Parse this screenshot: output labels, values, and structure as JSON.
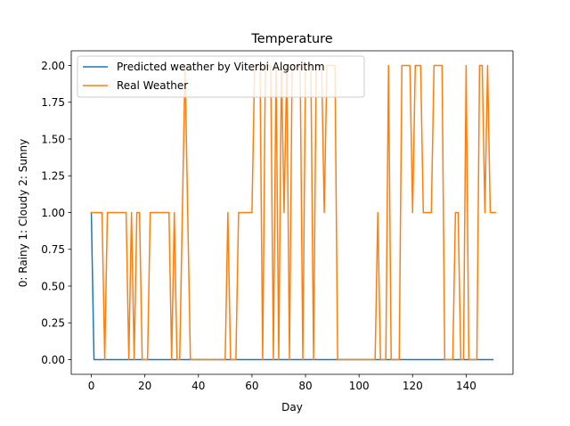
{
  "chart_data": {
    "type": "line",
    "title": "Temperature",
    "xlabel": "Day",
    "ylabel": "0: Rainy 1: Cloudy 2: Sunny",
    "xlim": [
      -7.5,
      157.5
    ],
    "ylim": [
      -0.1,
      2.1
    ],
    "xticks": [
      0,
      20,
      40,
      60,
      80,
      100,
      120,
      140
    ],
    "xtick_labels": [
      "0",
      "20",
      "40",
      "60",
      "80",
      "100",
      "120",
      "140"
    ],
    "yticks": [
      0,
      0.25,
      0.5,
      0.75,
      1.0,
      1.25,
      1.5,
      1.75,
      2.0
    ],
    "ytick_labels": [
      "0.00",
      "0.25",
      "0.50",
      "0.75",
      "1.00",
      "1.25",
      "1.50",
      "1.75",
      "2.00"
    ],
    "grid": false,
    "legend_position": "upper-left",
    "series": [
      {
        "name": "Predicted weather by Viterbi Algorithm",
        "color": "#1f77b4",
        "values": [
          1,
          0,
          0,
          0,
          0,
          0,
          0,
          0,
          0,
          0,
          0,
          0,
          0,
          0,
          0,
          0,
          0,
          0,
          0,
          0,
          0,
          0,
          0,
          0,
          0,
          0,
          0,
          0,
          0,
          0,
          0,
          0,
          0,
          0,
          0,
          0,
          0,
          0,
          0,
          0,
          0,
          0,
          0,
          0,
          0,
          0,
          0,
          0,
          0,
          0,
          0,
          0,
          0,
          0,
          0,
          0,
          0,
          0,
          0,
          0,
          0,
          0,
          0,
          0,
          0,
          0,
          0,
          0,
          0,
          0,
          0,
          0,
          0,
          0,
          0,
          0,
          0,
          0,
          0,
          0,
          0,
          0,
          0,
          0,
          0,
          0,
          0,
          0,
          0,
          0,
          0,
          0,
          0,
          0,
          0,
          0,
          0,
          0,
          0,
          0,
          0,
          0,
          0,
          0,
          0,
          0,
          0,
          0,
          0,
          0,
          0,
          0,
          0,
          0,
          0,
          0,
          0,
          0,
          0,
          0,
          0,
          0,
          0,
          0,
          0,
          0,
          0,
          0,
          0,
          0,
          0,
          0,
          0,
          0,
          0,
          0,
          0,
          0,
          0,
          0,
          0,
          0,
          0,
          0,
          0,
          0,
          0,
          0,
          0,
          0,
          0
        ]
      },
      {
        "name": "Real Weather",
        "color": "#ff7f0e",
        "values": [
          1,
          1,
          1,
          1,
          1,
          0,
          1,
          1,
          1,
          1,
          1,
          1,
          1,
          1,
          0,
          1,
          0,
          1,
          1,
          0,
          0,
          0,
          1,
          1,
          1,
          1,
          1,
          1,
          1,
          1,
          0,
          1,
          0,
          0,
          1,
          2,
          1,
          0,
          0,
          0,
          0,
          0,
          0,
          0,
          0,
          0,
          0,
          0,
          0,
          0,
          0,
          1,
          0,
          0,
          0,
          1,
          1,
          1,
          1,
          1,
          1,
          2,
          2,
          2,
          0,
          2,
          2,
          2,
          0,
          2,
          0,
          2,
          1,
          2,
          0,
          2,
          2,
          2,
          2,
          0,
          2,
          2,
          2,
          0,
          2,
          2,
          2,
          1,
          2,
          2,
          2,
          2,
          0,
          0,
          0,
          0,
          0,
          0,
          0,
          0,
          0,
          0,
          0,
          0,
          0,
          0,
          0,
          1,
          0,
          0,
          0,
          2,
          0,
          0,
          0,
          0,
          2,
          2,
          2,
          2,
          1,
          2,
          2,
          2,
          1,
          1,
          1,
          1,
          2,
          2,
          2,
          2,
          0,
          0,
          0,
          0,
          1,
          1,
          0,
          0,
          2,
          0,
          0,
          0,
          0,
          2,
          2,
          1,
          2,
          1,
          1,
          1
        ]
      }
    ]
  }
}
